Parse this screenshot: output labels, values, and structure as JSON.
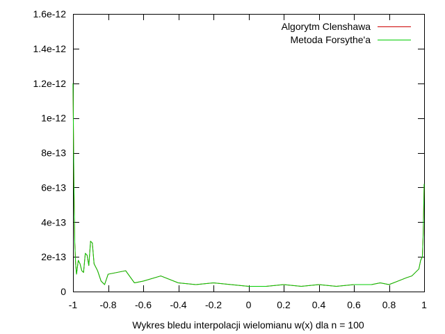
{
  "chart_data": {
    "type": "line",
    "title": "",
    "xlabel": "Wykres bledu interpolacji wielomianu w(x) dla n = 100",
    "ylabel": "",
    "xlim": [
      -1,
      1
    ],
    "ylim": [
      0,
      1.6e-12
    ],
    "grid": false,
    "legend_position": "top-right",
    "x_ticks": [
      -1,
      -0.8,
      -0.6,
      -0.4,
      -0.2,
      0,
      0.2,
      0.4,
      0.6,
      0.8,
      1
    ],
    "x_tick_labels": [
      "-1",
      "-0.8",
      "-0.6",
      "-0.4",
      "-0.2",
      "0",
      "0.2",
      "0.4",
      "0.6",
      "0.8",
      "1"
    ],
    "y_ticks": [
      0,
      2e-13,
      4e-13,
      6e-13,
      8e-13,
      1e-12,
      1.2e-12,
      1.4e-12,
      1.6e-12
    ],
    "y_tick_labels": [
      "0",
      "2e-13",
      "4e-13",
      "6e-13",
      "8e-13",
      "1e-12",
      "1.2e-12",
      "1.4e-12",
      "1.6e-12"
    ],
    "series": [
      {
        "name": "Algorytm Clenshawa",
        "color": "#cc0000",
        "x": [
          -1.0,
          -0.995,
          -0.99,
          -0.985,
          -0.98,
          -0.97,
          -0.96,
          -0.95,
          -0.94,
          -0.93,
          -0.92,
          -0.91,
          -0.9,
          -0.89,
          -0.88,
          -0.86,
          -0.84,
          -0.82,
          -0.8,
          -0.75,
          -0.7,
          -0.65,
          -0.6,
          -0.5,
          -0.4,
          -0.3,
          -0.2,
          -0.1,
          0.0,
          0.1,
          0.2,
          0.3,
          0.4,
          0.5,
          0.6,
          0.7,
          0.75,
          0.8,
          0.85,
          0.9,
          0.93,
          0.95,
          0.97,
          0.98,
          0.99,
          0.995,
          1.0
        ],
        "y": [
          1.2e-12,
          6.4e-13,
          2.8e-13,
          1.6e-13,
          1e-13,
          1.8e-13,
          1.6e-13,
          1.2e-13,
          1.1e-13,
          2.2e-13,
          2.1e-13,
          1.5e-13,
          2.9e-13,
          2.8e-13,
          1.6e-13,
          1.2e-13,
          6e-14,
          4e-14,
          1e-13,
          1.1e-13,
          1.2e-13,
          5e-14,
          6e-14,
          9e-14,
          5e-14,
          4e-14,
          5e-14,
          4e-14,
          3e-14,
          3e-14,
          4e-14,
          3e-14,
          4e-14,
          3e-14,
          4e-14,
          4e-14,
          5e-14,
          4e-14,
          6e-14,
          8e-14,
          9e-14,
          1.1e-13,
          1.3e-13,
          1.8e-13,
          2e-13,
          3.4e-13,
          6.2e-13
        ]
      },
      {
        "name": "Metoda Forsythe'a",
        "color": "#00cc00",
        "x": [
          -1.0,
          -0.995,
          -0.99,
          -0.985,
          -0.98,
          -0.97,
          -0.96,
          -0.95,
          -0.94,
          -0.93,
          -0.92,
          -0.91,
          -0.9,
          -0.89,
          -0.88,
          -0.86,
          -0.84,
          -0.82,
          -0.8,
          -0.75,
          -0.7,
          -0.65,
          -0.6,
          -0.5,
          -0.4,
          -0.3,
          -0.2,
          -0.1,
          0.0,
          0.1,
          0.2,
          0.3,
          0.4,
          0.5,
          0.6,
          0.7,
          0.75,
          0.8,
          0.85,
          0.9,
          0.93,
          0.95,
          0.97,
          0.98,
          0.99,
          0.995,
          1.0
        ],
        "y": [
          1.2e-12,
          6.4e-13,
          2.8e-13,
          1.6e-13,
          1e-13,
          1.8e-13,
          1.6e-13,
          1.2e-13,
          1.1e-13,
          2.2e-13,
          2.1e-13,
          1.5e-13,
          2.9e-13,
          2.8e-13,
          1.6e-13,
          1.2e-13,
          6e-14,
          4e-14,
          1e-13,
          1.1e-13,
          1.2e-13,
          5e-14,
          6e-14,
          9e-14,
          5e-14,
          4e-14,
          5e-14,
          4e-14,
          3e-14,
          3e-14,
          4e-14,
          3e-14,
          4e-14,
          3e-14,
          4e-14,
          4e-14,
          5e-14,
          4e-14,
          6e-14,
          8e-14,
          9e-14,
          1.1e-13,
          1.3e-13,
          1.8e-13,
          2e-13,
          3.4e-13,
          6.2e-13
        ]
      }
    ]
  }
}
